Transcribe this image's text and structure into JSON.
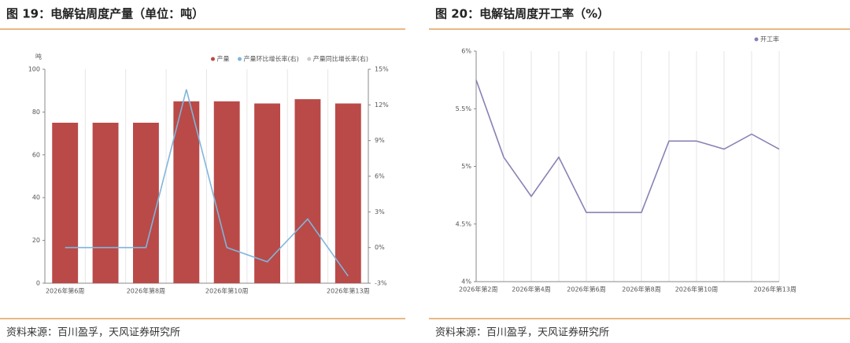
{
  "chart_data": [
    {
      "type": "bar",
      "title": "图 19：电解钴周度产量（单位：吨）",
      "source": "资料来源：百川盈孚，天风证券研究所",
      "y_unit": "吨",
      "categories": [
        "2026年第6周",
        null,
        "2026年第8周",
        null,
        "2026年第10周",
        null,
        null,
        "2026年第13周"
      ],
      "series": [
        {
          "name": "产量",
          "color": "#b94a48",
          "values": [
            75,
            75,
            75,
            85,
            85,
            84,
            86,
            84
          ]
        },
        {
          "name": "产量环比增长率(右)",
          "color": "#7fb6dc",
          "axis": "y2",
          "type": "line",
          "values": [
            0,
            0,
            0,
            13.3,
            0,
            -1.2,
            2.4,
            -2.4
          ]
        },
        {
          "name": "产量同比增长率(右)",
          "color": "#cccccc",
          "axis": "y2",
          "type": "line",
          "values": [
            null,
            null,
            null,
            null,
            null,
            null,
            null,
            null
          ]
        }
      ],
      "ylim": [
        0,
        100
      ],
      "yticks": [
        0,
        20,
        40,
        60,
        80,
        100
      ],
      "y2lim": [
        -3,
        15
      ],
      "y2ticks": [
        {
          "value": -3,
          "label": "-3%"
        },
        {
          "value": 0,
          "label": "0%"
        },
        {
          "value": 3,
          "label": "3%"
        },
        {
          "value": 6,
          "label": "6%"
        },
        {
          "value": 9,
          "label": "9%"
        },
        {
          "value": 12,
          "label": "12%"
        },
        {
          "value": 15,
          "label": "15%"
        }
      ],
      "legend": "top-right"
    },
    {
      "type": "line",
      "title": "图 20：电解钴周度开工率（%）",
      "source": "资料来源：百川盈孚，天风证券研究所",
      "categories": [
        "2026年第2周",
        null,
        "2026年第4周",
        null,
        "2026年第6周",
        null,
        "2026年第8周",
        null,
        "2026年第10周",
        null,
        null,
        "2026年第13周"
      ],
      "series": [
        {
          "name": "开工率",
          "color": "#8682b4",
          "values": [
            5.75,
            5.08,
            4.74,
            5.08,
            4.6,
            4.6,
            4.6,
            5.22,
            5.22,
            5.15,
            5.28,
            5.15
          ]
        }
      ],
      "ylim": [
        4,
        6
      ],
      "yticks": [
        {
          "value": 4,
          "label": "4%"
        },
        {
          "value": 4.5,
          "label": "4.5%"
        },
        {
          "value": 5,
          "label": "5%"
        },
        {
          "value": 5.5,
          "label": "5.5%"
        },
        {
          "value": 6,
          "label": "6%"
        }
      ],
      "legend": "top-right"
    }
  ]
}
